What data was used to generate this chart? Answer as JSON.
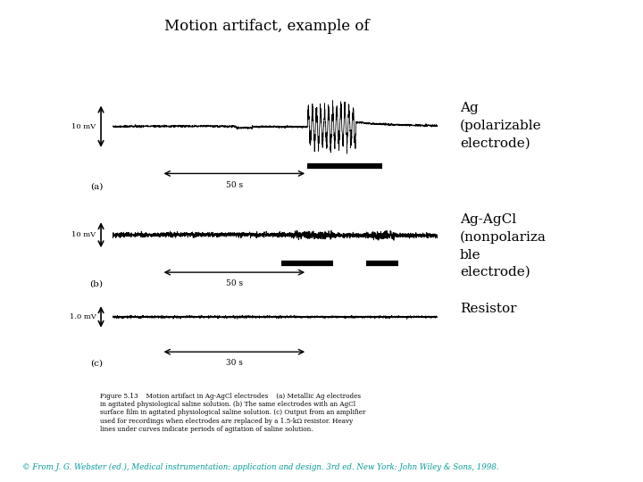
{
  "title": "Motion artifact, example of",
  "title_fontsize": 12,
  "background_color": "#ffffff",
  "label_a": "Ag\n(polarizable\nelectrode)",
  "label_b": "Ag-AgCl\n(nonpolariza\nble\nelectrode)",
  "label_c": "Resistor",
  "fig_caption": "Figure 5.13    Motion artifact in Ag-AgCl electrodes    (a) Metallic Ag electrodes\nin agitated physiological saline solution. (b) The same electrodes with an AgCl\nsurface film in agitated physiological saline solution. (c) Output from an amplifier\nused for recordings when electrodes are replaced by a 1.5-kΩ resistor. Heavy\nlines under curves indicate periods of agitation of saline solution.",
  "copyright_text": "© From J. G. Webster (ed.), Medical instrumentation: application and design. 3rd ed. New York: John Wiley & Sons, 1998.",
  "panel_label_a": "(a)",
  "panel_label_b": "(b)",
  "panel_label_c": "(c)",
  "scale_mv_a": "10 mV",
  "scale_mv_b": "10 mV",
  "scale_mv_c": "1.0 mV",
  "scale_time_a": "50 s",
  "scale_time_b": "50 s",
  "scale_time_c": "30 s"
}
